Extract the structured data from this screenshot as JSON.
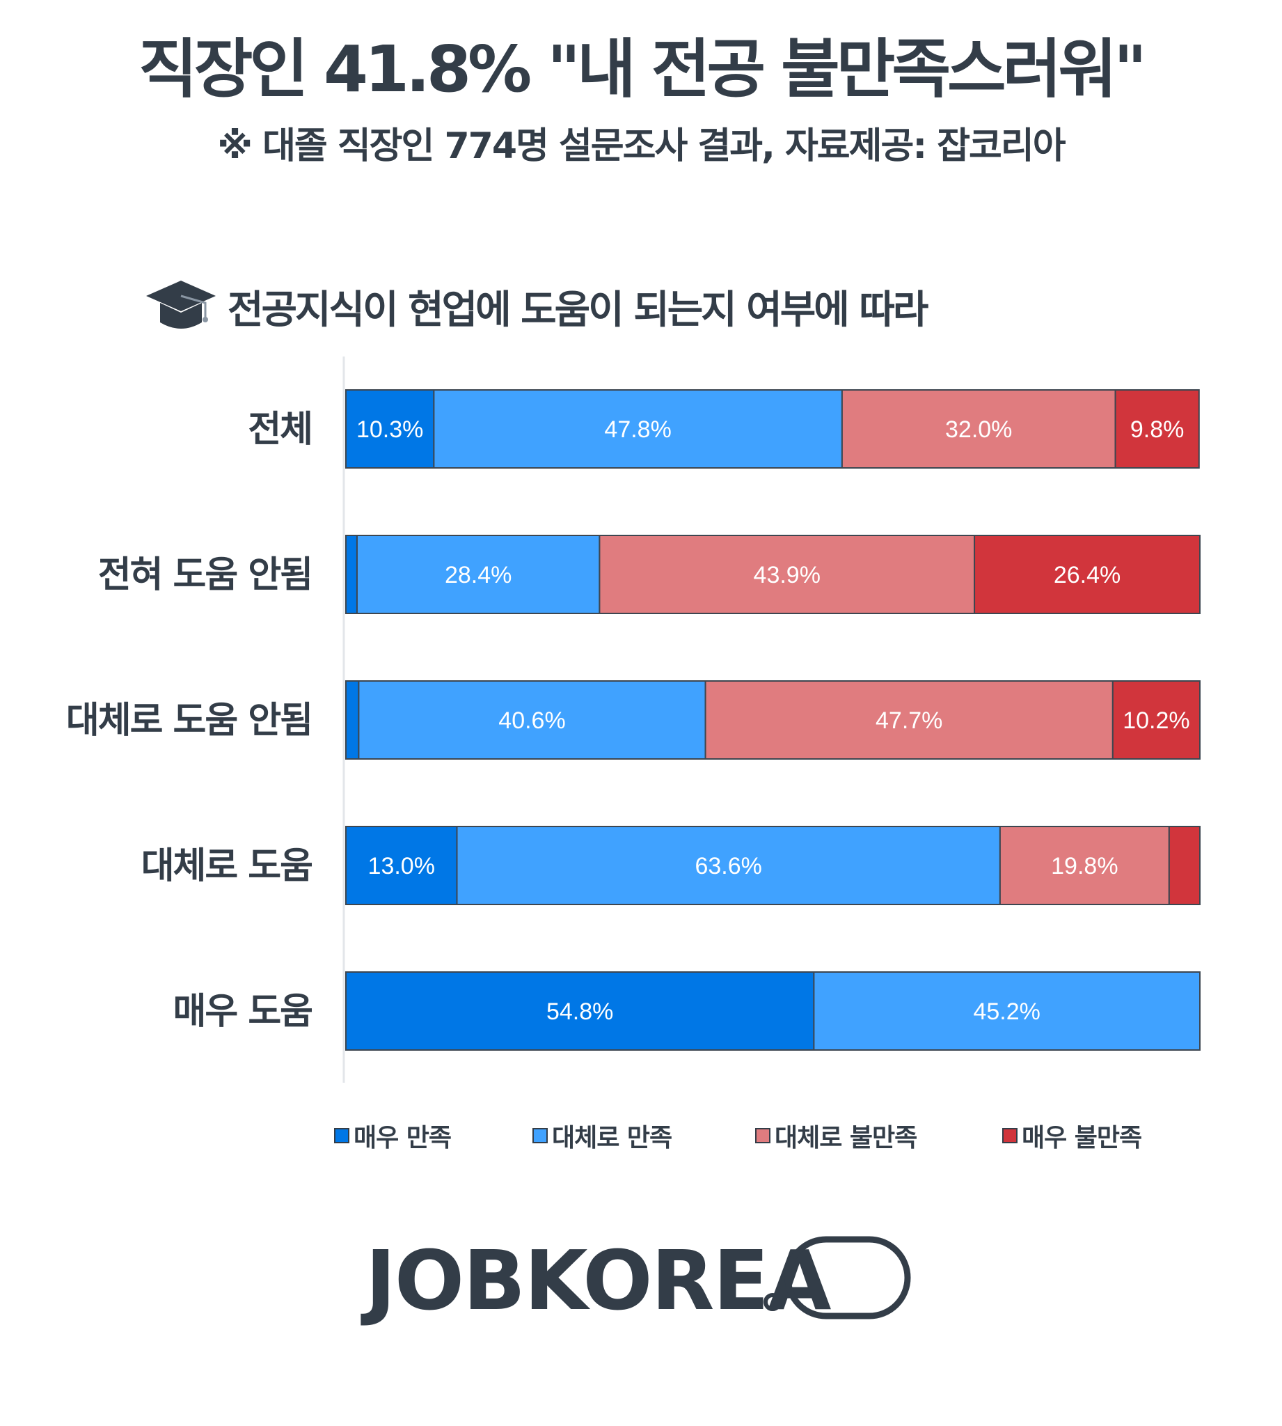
{
  "header": {
    "title": "직장인 41.8% \"내 전공 불만족스러워\"",
    "subtitle": "※ 대졸 직장인  774명 설문조사 결과,  자료제공: 잡코리아"
  },
  "section": {
    "icon": "graduation-cap-icon",
    "title": "전공지식이 현업에 도움이 되는지 여부에 따라"
  },
  "chart_data": {
    "type": "bar",
    "orientation": "horizontal",
    "stacked": true,
    "normalized": true,
    "categories": [
      "전체",
      "전혀 도움 안됨",
      "대체로 도움 안됨",
      "대체로 도움",
      "매우 도움"
    ],
    "series": [
      {
        "name": "매우 만족",
        "color": "#0077e6",
        "values": [
          10.3,
          1.3,
          1.5,
          13.0,
          54.8
        ],
        "labels": [
          "10.3%",
          "",
          "",
          "13.0%",
          "54.8%"
        ]
      },
      {
        "name": "대체로 만족",
        "color": "#40a2ff",
        "values": [
          47.8,
          28.4,
          40.6,
          63.6,
          45.2
        ],
        "labels": [
          "47.8%",
          "28.4%",
          "40.6%",
          "63.6%",
          "45.2%"
        ]
      },
      {
        "name": "대체로 불만족",
        "color": "#e07c7f",
        "values": [
          32.0,
          43.9,
          47.7,
          19.8,
          0
        ],
        "labels": [
          "32.0%",
          "43.9%",
          "47.7%",
          "19.8%",
          ""
        ]
      },
      {
        "name": "매우 불만족",
        "color": "#d1353c",
        "values": [
          9.8,
          26.4,
          10.2,
          3.6,
          0
        ],
        "labels": [
          "9.8%",
          "26.4%",
          "10.2%",
          "",
          ""
        ]
      }
    ],
    "xlim": [
      0,
      100
    ],
    "legend_position": "bottom",
    "grid": false
  },
  "logo": {
    "text": "JOBKOREA"
  }
}
